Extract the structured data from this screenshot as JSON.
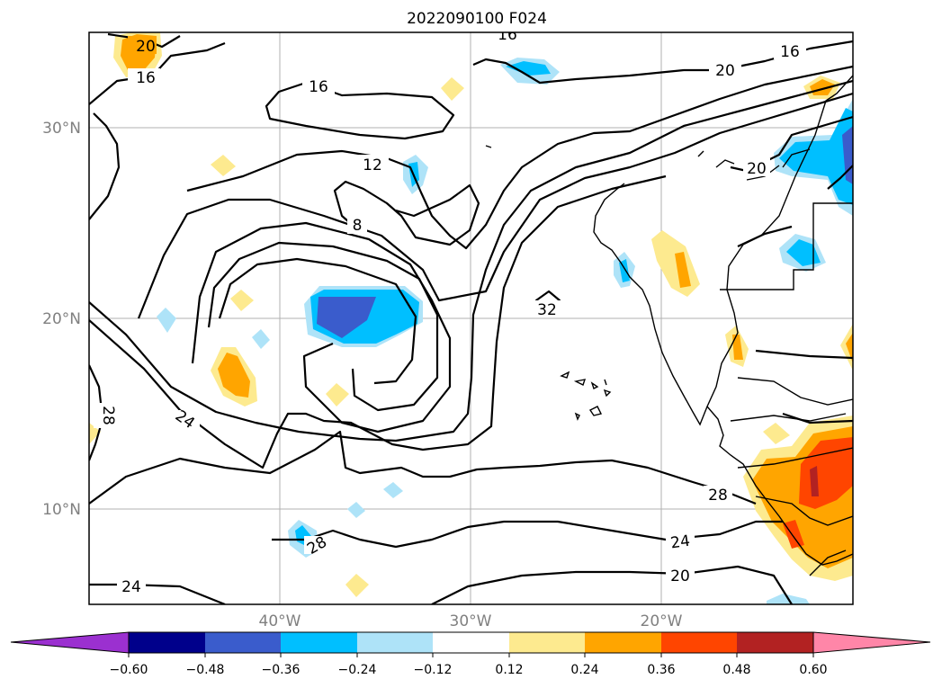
{
  "map": {
    "title": "2022090100 F024",
    "lat_labels": [
      "30°N",
      "20°N",
      "10°N"
    ],
    "lon_labels": [
      "40°W",
      "30°W",
      "20°W"
    ],
    "contour_labels": [
      "20",
      "16",
      "16",
      "16",
      "16",
      "20",
      "12",
      "8",
      "20",
      "32",
      "28",
      "24",
      "28",
      "24",
      "20",
      "28",
      "24"
    ],
    "colorbar": {
      "ticks": [
        "−0.60",
        "−0.48",
        "−0.36",
        "−0.24",
        "−0.12",
        "0.12",
        "0.24",
        "0.36",
        "0.48",
        "0.60"
      ],
      "colors": [
        "#9b30d0",
        "#00008b",
        "#3a5ccc",
        "#00bfff",
        "#aee3f8",
        "#ffffff",
        "#fdea8f",
        "#ffa500",
        "#ff4500",
        "#b22222",
        "#ff86a8"
      ]
    }
  }
}
